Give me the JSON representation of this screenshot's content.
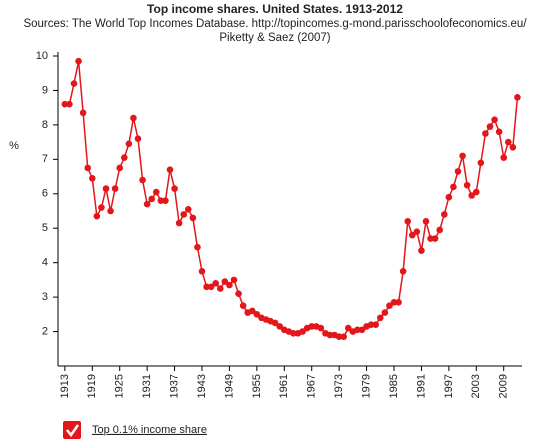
{
  "chart_data": {
    "type": "line",
    "title": "Top income shares. United States. 1913-2012",
    "subtitle": [
      "Sources: The World Top Incomes Database. http://topincomes.g-mond.parisschoolofeconomics.eu/",
      "Piketty & Saez (2007)"
    ],
    "ylabel": "%",
    "x": [
      1913,
      1914,
      1915,
      1916,
      1917,
      1918,
      1919,
      1920,
      1921,
      1922,
      1923,
      1924,
      1925,
      1926,
      1927,
      1928,
      1929,
      1930,
      1931,
      1932,
      1933,
      1934,
      1935,
      1936,
      1937,
      1938,
      1939,
      1940,
      1941,
      1942,
      1943,
      1944,
      1945,
      1946,
      1947,
      1948,
      1949,
      1950,
      1951,
      1952,
      1953,
      1954,
      1955,
      1956,
      1957,
      1958,
      1959,
      1960,
      1961,
      1962,
      1963,
      1964,
      1965,
      1966,
      1967,
      1968,
      1969,
      1970,
      1971,
      1972,
      1973,
      1974,
      1975,
      1976,
      1977,
      1978,
      1979,
      1980,
      1981,
      1982,
      1983,
      1984,
      1985,
      1986,
      1987,
      1988,
      1989,
      1990,
      1991,
      1992,
      1993,
      1994,
      1995,
      1996,
      1997,
      1998,
      1999,
      2000,
      2001,
      2002,
      2003,
      2004,
      2005,
      2006,
      2007,
      2008,
      2009,
      2010,
      2011,
      2012
    ],
    "series": [
      {
        "name": "Top 0.1% income share",
        "color": "#e3161b",
        "values": [
          8.6,
          8.6,
          9.2,
          9.85,
          8.35,
          6.75,
          6.45,
          5.35,
          5.6,
          6.15,
          5.5,
          6.15,
          6.75,
          7.05,
          7.45,
          8.2,
          7.6,
          6.4,
          5.7,
          5.85,
          6.05,
          5.8,
          5.8,
          6.7,
          6.15,
          5.15,
          5.4,
          5.55,
          5.3,
          4.45,
          3.75,
          3.3,
          3.3,
          3.4,
          3.25,
          3.45,
          3.35,
          3.5,
          3.1,
          2.75,
          2.55,
          2.6,
          2.5,
          2.4,
          2.35,
          2.3,
          2.25,
          2.15,
          2.05,
          2.0,
          1.95,
          1.95,
          2.0,
          2.1,
          2.15,
          2.15,
          2.1,
          1.95,
          1.9,
          1.9,
          1.85,
          1.85,
          2.1,
          2.0,
          2.05,
          2.05,
          2.15,
          2.2,
          2.2,
          2.4,
          2.55,
          2.75,
          2.85,
          2.85,
          3.75,
          5.2,
          4.8,
          4.9,
          4.35,
          5.2,
          4.7,
          4.7,
          4.95,
          5.4,
          5.9,
          6.2,
          6.65,
          7.1,
          6.25,
          5.95,
          6.05,
          6.9,
          7.75,
          7.95,
          8.15,
          7.8,
          7.05,
          7.5,
          7.35,
          8.8
        ]
      }
    ],
    "xlim": [
      1911.5,
      2013
    ],
    "xticks": [
      1913,
      1919,
      1925,
      1931,
      1937,
      1943,
      1949,
      1955,
      1961,
      1967,
      1973,
      1979,
      1985,
      1991,
      1997,
      2003,
      2009
    ],
    "ylim": [
      1,
      10
    ],
    "yticks": [
      2,
      3,
      4,
      5,
      6,
      7,
      8,
      9,
      10
    ],
    "grid": false
  }
}
